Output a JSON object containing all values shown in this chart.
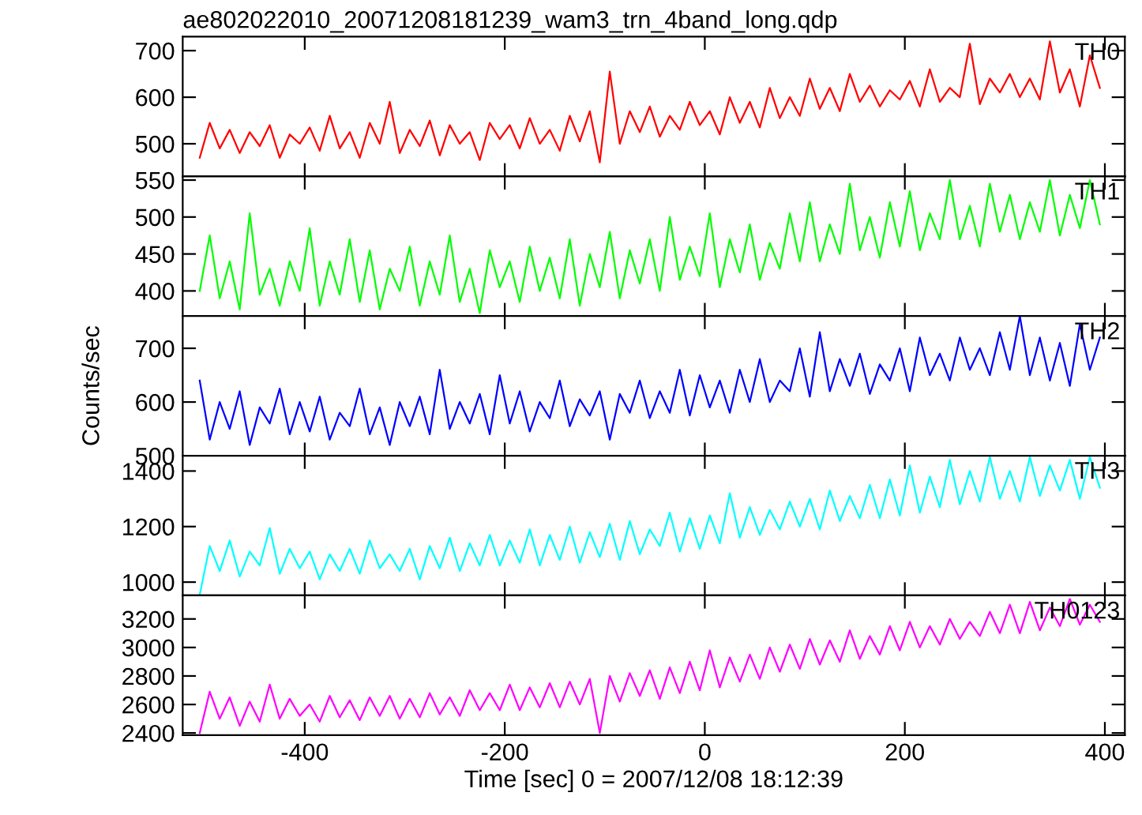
{
  "chart_data": [
    {
      "type": "line",
      "title": "ae802022010_20071208181239_wam3_trn_4band_long.qdp",
      "x": [
        -505,
        -495,
        -485,
        -475,
        -465,
        -455,
        -445,
        -435,
        -425,
        -415,
        -405,
        -395,
        -385,
        -375,
        -365,
        -355,
        -345,
        -335,
        -325,
        -315,
        -305,
        -295,
        -285,
        -275,
        -265,
        -255,
        -245,
        -235,
        -225,
        -215,
        -205,
        -195,
        -185,
        -175,
        -165,
        -155,
        -145,
        -135,
        -125,
        -115,
        -105,
        -95,
        -85,
        -75,
        -65,
        -55,
        -45,
        -35,
        -25,
        -15,
        -5,
        5,
        15,
        25,
        35,
        45,
        55,
        65,
        75,
        85,
        95,
        105,
        115,
        125,
        135,
        145,
        155,
        165,
        175,
        185,
        195,
        205,
        215,
        225,
        235,
        245,
        255,
        265,
        275,
        285,
        295,
        305,
        315,
        325,
        335,
        345,
        355,
        365,
        375,
        385,
        395
      ],
      "xlim": [
        -522,
        420
      ],
      "xticks": [
        -400,
        -200,
        0,
        200,
        400
      ],
      "ylim": [
        430,
        730
      ],
      "yticks": [
        500,
        600,
        700
      ],
      "tick_labels": "y",
      "legend": false,
      "grid": false,
      "series": [
        {
          "name": "TH0",
          "color": "#ff0000",
          "values": [
            470,
            545,
            490,
            530,
            480,
            525,
            495,
            540,
            470,
            520,
            500,
            535,
            485,
            560,
            490,
            525,
            470,
            545,
            500,
            590,
            480,
            530,
            495,
            550,
            475,
            540,
            500,
            525,
            465,
            545,
            510,
            540,
            490,
            555,
            500,
            530,
            485,
            560,
            505,
            570,
            460,
            655,
            500,
            570,
            525,
            580,
            515,
            560,
            530,
            590,
            540,
            570,
            520,
            600,
            545,
            590,
            535,
            620,
            555,
            600,
            560,
            640,
            575,
            620,
            570,
            650,
            590,
            625,
            580,
            615,
            595,
            635,
            580,
            660,
            590,
            620,
            600,
            715,
            585,
            640,
            610,
            650,
            600,
            640,
            595,
            720,
            610,
            660,
            580,
            690,
            620
          ]
        }
      ]
    },
    {
      "type": "line",
      "x": [
        -505,
        -495,
        -485,
        -475,
        -465,
        -455,
        -445,
        -435,
        -425,
        -415,
        -405,
        -395,
        -385,
        -375,
        -365,
        -355,
        -345,
        -335,
        -325,
        -315,
        -305,
        -295,
        -285,
        -275,
        -265,
        -255,
        -245,
        -235,
        -225,
        -215,
        -205,
        -195,
        -185,
        -175,
        -165,
        -155,
        -145,
        -135,
        -125,
        -115,
        -105,
        -95,
        -85,
        -75,
        -65,
        -55,
        -45,
        -35,
        -25,
        -15,
        -5,
        5,
        15,
        25,
        35,
        45,
        55,
        65,
        75,
        85,
        95,
        105,
        115,
        125,
        135,
        145,
        155,
        165,
        175,
        185,
        195,
        205,
        215,
        225,
        235,
        245,
        255,
        265,
        275,
        285,
        295,
        305,
        315,
        325,
        335,
        345,
        355,
        365,
        375,
        385,
        395
      ],
      "xlim": [
        -522,
        420
      ],
      "xticks": [
        -400,
        -200,
        0,
        200,
        400
      ],
      "ylim": [
        366,
        555
      ],
      "yticks": [
        400,
        450,
        500,
        550
      ],
      "tick_labels": "y",
      "legend": false,
      "grid": false,
      "series": [
        {
          "name": "TH1",
          "color": "#00ff00",
          "values": [
            400,
            475,
            390,
            440,
            375,
            505,
            395,
            430,
            380,
            440,
            400,
            485,
            380,
            440,
            395,
            470,
            385,
            455,
            375,
            430,
            400,
            460,
            380,
            440,
            395,
            475,
            385,
            430,
            370,
            455,
            405,
            440,
            385,
            460,
            400,
            445,
            390,
            470,
            380,
            450,
            405,
            480,
            390,
            455,
            410,
            470,
            400,
            500,
            415,
            460,
            420,
            505,
            405,
            470,
            425,
            490,
            415,
            465,
            430,
            505,
            440,
            520,
            440,
            490,
            450,
            545,
            455,
            500,
            445,
            520,
            460,
            535,
            455,
            505,
            470,
            550,
            470,
            515,
            460,
            545,
            480,
            530,
            470,
            520,
            480,
            550,
            475,
            530,
            485,
            550,
            490
          ]
        }
      ]
    },
    {
      "type": "line",
      "ylabel": "Counts/sec",
      "x": [
        -505,
        -495,
        -485,
        -475,
        -465,
        -455,
        -445,
        -435,
        -425,
        -415,
        -405,
        -395,
        -385,
        -375,
        -365,
        -355,
        -345,
        -335,
        -325,
        -315,
        -305,
        -295,
        -285,
        -275,
        -265,
        -255,
        -245,
        -235,
        -225,
        -215,
        -205,
        -195,
        -185,
        -175,
        -165,
        -155,
        -145,
        -135,
        -125,
        -115,
        -105,
        -95,
        -85,
        -75,
        -65,
        -55,
        -45,
        -35,
        -25,
        -15,
        -5,
        5,
        15,
        25,
        35,
        45,
        55,
        65,
        75,
        85,
        95,
        105,
        115,
        125,
        135,
        145,
        155,
        165,
        175,
        185,
        195,
        205,
        215,
        225,
        235,
        245,
        255,
        265,
        275,
        285,
        295,
        305,
        315,
        325,
        335,
        345,
        355,
        365,
        375,
        385,
        395
      ],
      "xlim": [
        -522,
        420
      ],
      "xticks": [
        -400,
        -200,
        0,
        200,
        400
      ],
      "ylim": [
        500,
        760
      ],
      "yticks": [
        500,
        600,
        700
      ],
      "tick_labels": "y",
      "legend": false,
      "grid": false,
      "series": [
        {
          "name": "TH2",
          "color": "#0000ff",
          "values": [
            640,
            530,
            600,
            550,
            620,
            520,
            590,
            560,
            625,
            540,
            600,
            545,
            610,
            530,
            580,
            555,
            625,
            540,
            590,
            520,
            600,
            555,
            610,
            540,
            660,
            550,
            600,
            560,
            615,
            540,
            650,
            560,
            620,
            545,
            600,
            570,
            640,
            555,
            605,
            575,
            620,
            530,
            615,
            580,
            640,
            570,
            620,
            580,
            660,
            575,
            650,
            590,
            640,
            580,
            660,
            600,
            680,
            600,
            640,
            620,
            700,
            610,
            730,
            620,
            680,
            630,
            690,
            615,
            670,
            640,
            700,
            620,
            720,
            650,
            690,
            640,
            720,
            660,
            700,
            650,
            730,
            660,
            760,
            650,
            720,
            640,
            710,
            630,
            745,
            660,
            720
          ]
        }
      ]
    },
    {
      "type": "line",
      "x": [
        -505,
        -495,
        -485,
        -475,
        -465,
        -455,
        -445,
        -435,
        -425,
        -415,
        -405,
        -395,
        -385,
        -375,
        -365,
        -355,
        -345,
        -335,
        -325,
        -315,
        -305,
        -295,
        -285,
        -275,
        -265,
        -255,
        -245,
        -235,
        -225,
        -215,
        -205,
        -195,
        -185,
        -175,
        -165,
        -155,
        -145,
        -135,
        -125,
        -115,
        -105,
        -95,
        -85,
        -75,
        -65,
        -55,
        -45,
        -35,
        -25,
        -15,
        -5,
        5,
        15,
        25,
        35,
        45,
        55,
        65,
        75,
        85,
        95,
        105,
        115,
        125,
        135,
        145,
        155,
        165,
        175,
        185,
        195,
        205,
        215,
        225,
        235,
        245,
        255,
        265,
        275,
        285,
        295,
        305,
        315,
        325,
        335,
        345,
        355,
        365,
        375,
        385,
        395
      ],
      "xlim": [
        -522,
        420
      ],
      "xticks": [
        -400,
        -200,
        0,
        200,
        400
      ],
      "ylim": [
        952,
        1455
      ],
      "yticks": [
        1000,
        1200,
        1400
      ],
      "tick_labels": "y",
      "legend": false,
      "grid": false,
      "series": [
        {
          "name": "TH3",
          "color": "#00ffff",
          "values": [
            955,
            1130,
            1040,
            1150,
            1020,
            1110,
            1060,
            1195,
            1030,
            1120,
            1050,
            1110,
            1010,
            1100,
            1040,
            1120,
            1030,
            1150,
            1050,
            1100,
            1040,
            1120,
            1010,
            1130,
            1050,
            1160,
            1040,
            1140,
            1060,
            1170,
            1060,
            1150,
            1070,
            1190,
            1060,
            1170,
            1080,
            1200,
            1070,
            1180,
            1090,
            1210,
            1080,
            1220,
            1100,
            1190,
            1130,
            1250,
            1110,
            1230,
            1120,
            1240,
            1140,
            1320,
            1160,
            1270,
            1170,
            1260,
            1190,
            1290,
            1200,
            1300,
            1190,
            1330,
            1220,
            1310,
            1230,
            1350,
            1230,
            1370,
            1240,
            1420,
            1250,
            1380,
            1270,
            1440,
            1280,
            1400,
            1290,
            1450,
            1300,
            1400,
            1290,
            1450,
            1310,
            1420,
            1330,
            1440,
            1300,
            1450,
            1340
          ]
        }
      ]
    },
    {
      "type": "line",
      "xlabel": "Time [sec] 0 = 2007/12/08 18:12:39",
      "x": [
        -505,
        -495,
        -485,
        -475,
        -465,
        -455,
        -445,
        -435,
        -425,
        -415,
        -405,
        -395,
        -385,
        -375,
        -365,
        -355,
        -345,
        -335,
        -325,
        -315,
        -305,
        -295,
        -285,
        -275,
        -265,
        -255,
        -245,
        -235,
        -225,
        -215,
        -205,
        -195,
        -185,
        -175,
        -165,
        -155,
        -145,
        -135,
        -125,
        -115,
        -105,
        -95,
        -85,
        -75,
        -65,
        -55,
        -45,
        -35,
        -25,
        -15,
        -5,
        5,
        15,
        25,
        35,
        45,
        55,
        65,
        75,
        85,
        95,
        105,
        115,
        125,
        135,
        145,
        155,
        165,
        175,
        185,
        195,
        205,
        215,
        225,
        235,
        245,
        255,
        265,
        275,
        285,
        295,
        305,
        315,
        325,
        335,
        345,
        355,
        365,
        375,
        385,
        395
      ],
      "xlim": [
        -522,
        420
      ],
      "xticks": [
        -400,
        -200,
        0,
        200,
        400
      ],
      "ylim": [
        2385,
        3365
      ],
      "yticks": [
        2400,
        2600,
        2800,
        3000,
        3200
      ],
      "legend": false,
      "grid": false,
      "series": [
        {
          "name": "TH0123",
          "color": "#ff00ff",
          "values": [
            2400,
            2690,
            2500,
            2650,
            2450,
            2620,
            2480,
            2740,
            2500,
            2640,
            2520,
            2600,
            2480,
            2660,
            2510,
            2630,
            2490,
            2650,
            2520,
            2660,
            2500,
            2640,
            2510,
            2680,
            2530,
            2650,
            2520,
            2700,
            2560,
            2680,
            2560,
            2740,
            2560,
            2720,
            2580,
            2750,
            2580,
            2760,
            2600,
            2780,
            2400,
            2800,
            2620,
            2820,
            2660,
            2840,
            2640,
            2860,
            2680,
            2900,
            2700,
            2980,
            2720,
            2930,
            2760,
            2950,
            2780,
            3000,
            2830,
            3020,
            2850,
            3060,
            2880,
            3050,
            2900,
            3120,
            2920,
            3080,
            2950,
            3150,
            2980,
            3180,
            3000,
            3150,
            3020,
            3200,
            3060,
            3180,
            3080,
            3250,
            3100,
            3300,
            3100,
            3320,
            3120,
            3280,
            3150,
            3340,
            3160,
            3300,
            3180
          ]
        }
      ]
    }
  ]
}
